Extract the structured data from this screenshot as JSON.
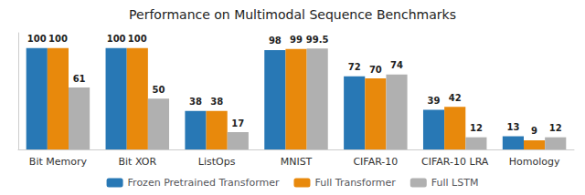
{
  "chart_data": {
    "type": "bar",
    "title": "Performance on Multimodal Sequence Benchmarks",
    "categories": [
      "Bit Memory",
      "Bit XOR",
      "ListOps",
      "MNIST",
      "CIFAR-10",
      "CIFAR-10 LRA",
      "Homology"
    ],
    "series": [
      {
        "name": "Frozen Pretrained Transformer",
        "color": "#2878b5",
        "values": [
          100,
          100,
          38,
          98,
          72,
          39,
          13
        ]
      },
      {
        "name": "Full Transformer",
        "color": "#e8890c",
        "values": [
          100,
          100,
          38,
          99,
          70,
          42,
          9
        ]
      },
      {
        "name": "Full LSTM",
        "color": "#b0b0b0",
        "values": [
          61,
          50,
          17,
          99.5,
          74,
          12,
          12
        ]
      }
    ],
    "ylim": [
      0,
      115
    ],
    "grid": false,
    "legend": "bottom",
    "data_labels": true,
    "tick_labels": "x"
  }
}
